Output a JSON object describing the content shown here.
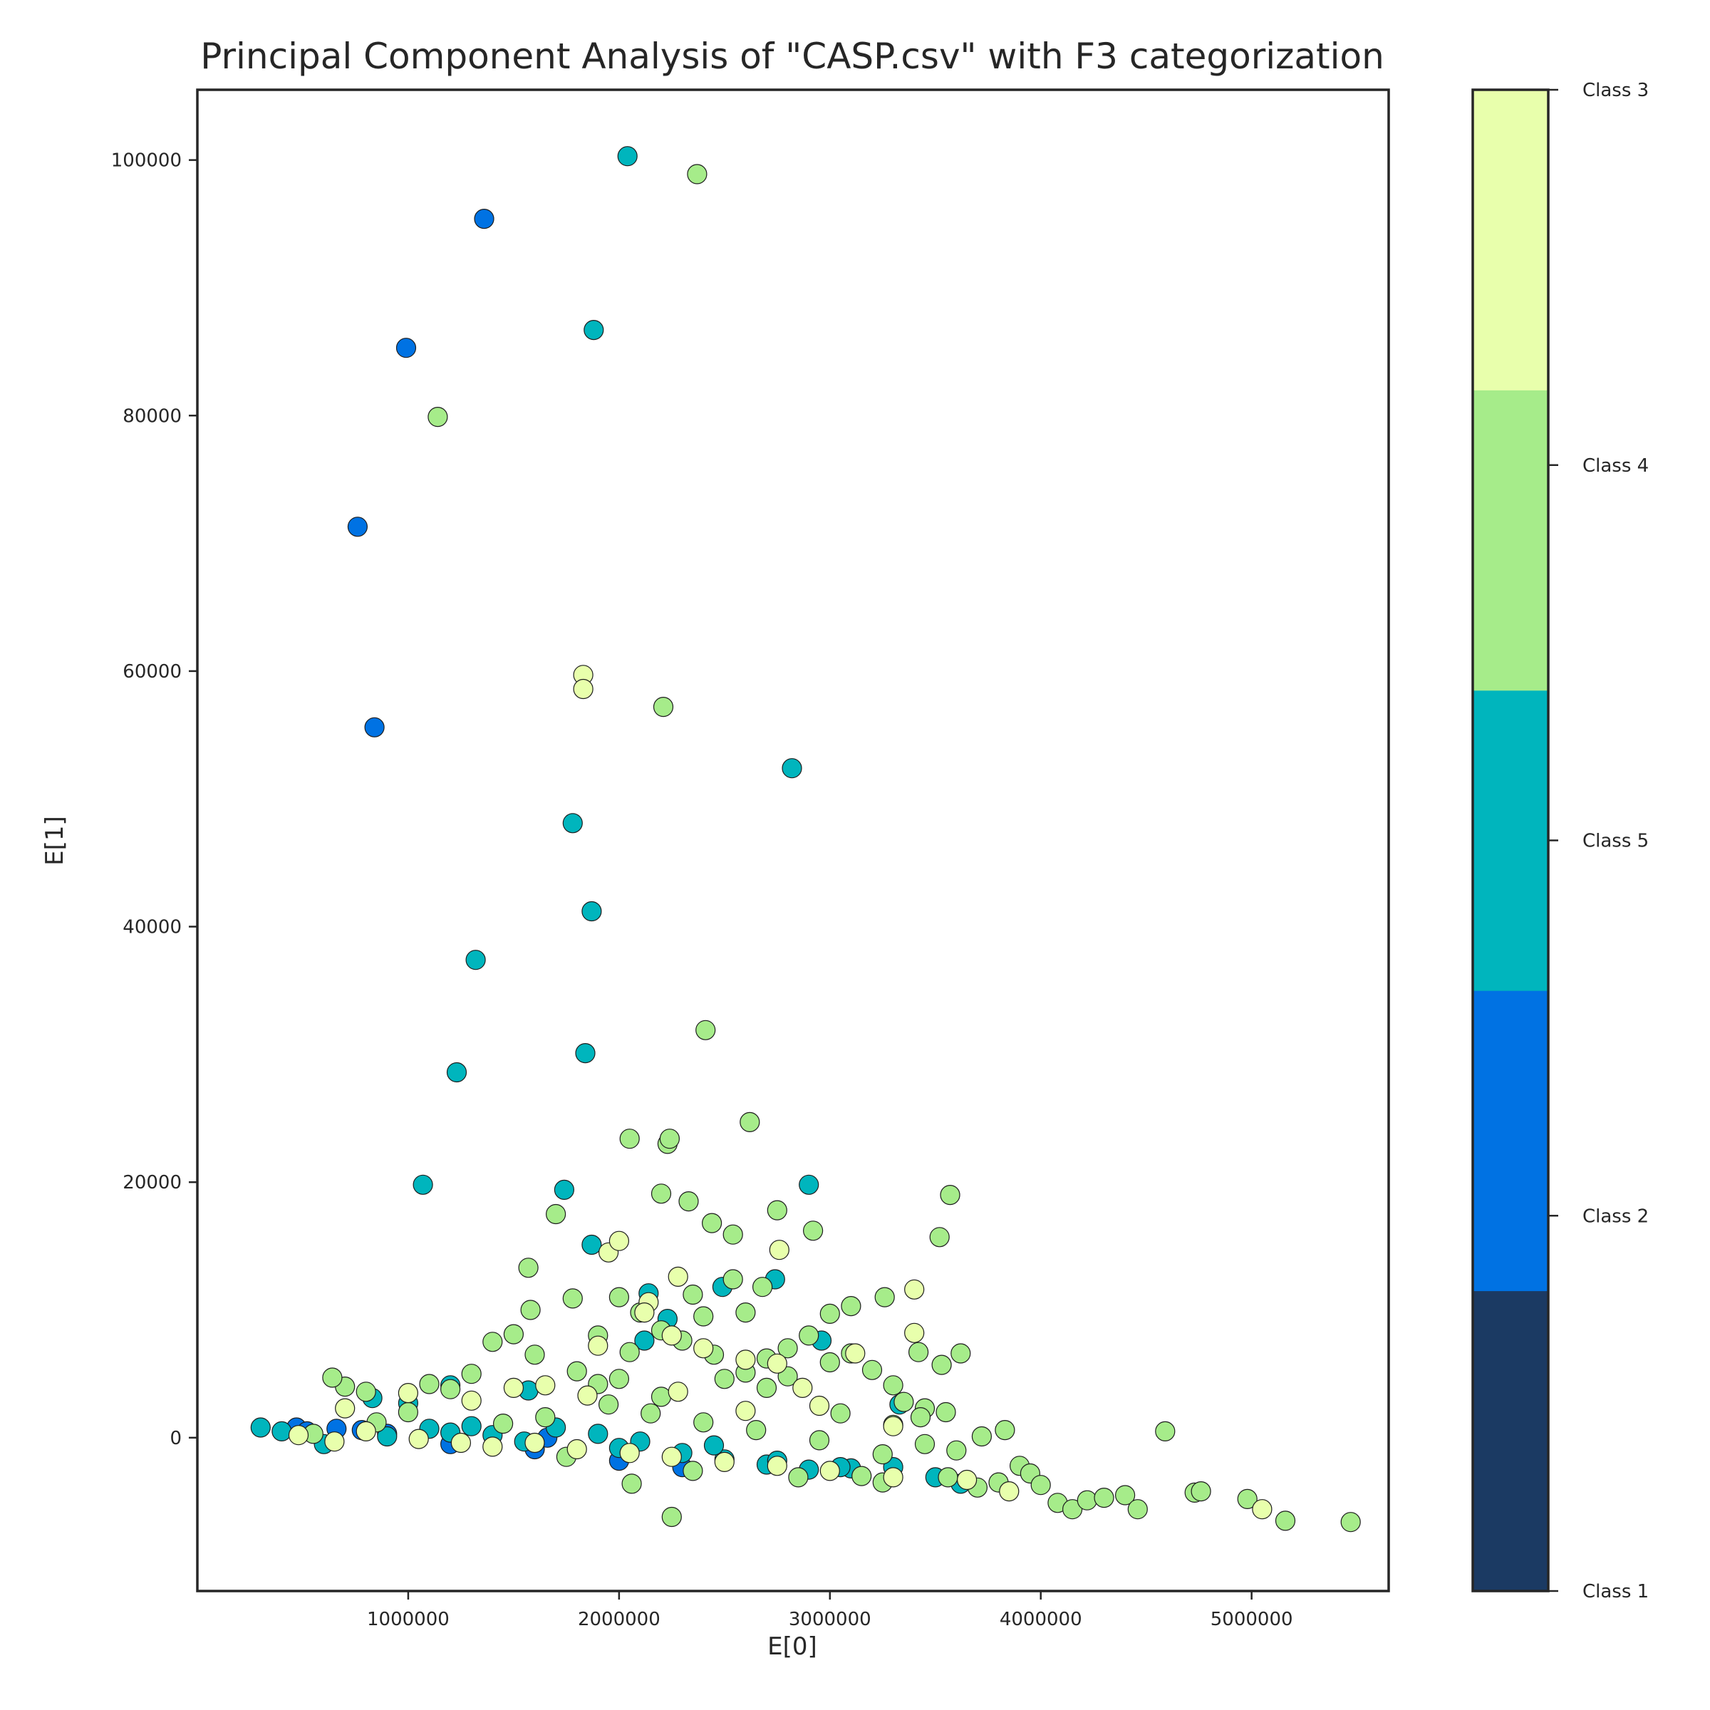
{
  "chart_data": {
    "type": "scatter",
    "title": "Principal Component Analysis of \"CASP.csv\" with F3 categorization",
    "xlabel": "E[0]",
    "ylabel": "E[1]",
    "xlim": [
      0,
      5650000
    ],
    "ylim": [
      -12000,
      105500
    ],
    "xticks": [
      1000000,
      2000000,
      3000000,
      4000000,
      5000000
    ],
    "yticks": [
      0,
      20000,
      40000,
      60000,
      80000,
      100000
    ],
    "grid": false,
    "colorbar": {
      "classes": [
        {
          "label": "Class 1",
          "color": "#1b3a63"
        },
        {
          "label": "Class 2",
          "color": "#0072e3"
        },
        {
          "label": "Class 5",
          "color": "#00b5bd"
        },
        {
          "label": "Class 4",
          "color": "#a6ec8a"
        },
        {
          "label": "Class 3",
          "color": "#e8ffac"
        }
      ]
    },
    "series": [
      {
        "name": "Class 2",
        "points": [
          [
            1360000,
            95400
          ],
          [
            990000,
            85300
          ],
          [
            760000,
            71300
          ],
          [
            840000,
            55600
          ],
          [
            1660000,
            0
          ],
          [
            470000,
            800
          ],
          [
            660000,
            700
          ],
          [
            520000,
            500
          ],
          [
            780000,
            600
          ],
          [
            900000,
            300
          ],
          [
            1200000,
            -500
          ],
          [
            1600000,
            -900
          ],
          [
            2000000,
            -1800
          ],
          [
            2300000,
            -2300
          ]
        ]
      },
      {
        "name": "Class 5",
        "points": [
          [
            2040000,
            100300
          ],
          [
            1880000,
            86700
          ],
          [
            2820000,
            52400
          ],
          [
            1780000,
            48100
          ],
          [
            1870000,
            41200
          ],
          [
            1320000,
            37400
          ],
          [
            1840000,
            30100
          ],
          [
            1230000,
            28600
          ],
          [
            1070000,
            19800
          ],
          [
            1740000,
            19400
          ],
          [
            2900000,
            19800
          ],
          [
            1870000,
            15100
          ],
          [
            2740000,
            12400
          ],
          [
            2490000,
            11800
          ],
          [
            2140000,
            11300
          ],
          [
            2230000,
            9300
          ],
          [
            2120000,
            7600
          ],
          [
            2960000,
            7600
          ],
          [
            3330000,
            2600
          ],
          [
            1570000,
            3700
          ],
          [
            1000000,
            2700
          ],
          [
            830000,
            3100
          ],
          [
            1200000,
            4100
          ],
          [
            300000,
            800
          ],
          [
            400000,
            500
          ],
          [
            600000,
            -500
          ],
          [
            900000,
            100
          ],
          [
            1100000,
            700
          ],
          [
            1300000,
            900
          ],
          [
            1400000,
            200
          ],
          [
            1700000,
            800
          ],
          [
            1900000,
            300
          ],
          [
            2100000,
            -300
          ],
          [
            2300000,
            -1200
          ],
          [
            2500000,
            -1700
          ],
          [
            2700000,
            -2100
          ],
          [
            2900000,
            -2500
          ],
          [
            3100000,
            -2400
          ],
          [
            3300000,
            -2300
          ],
          [
            3500000,
            -3100
          ],
          [
            3620000,
            -3600
          ],
          [
            2750000,
            -1800
          ],
          [
            3050000,
            -2300
          ],
          [
            2450000,
            -600
          ],
          [
            2000000,
            -800
          ],
          [
            1550000,
            -300
          ],
          [
            1200000,
            400
          ]
        ]
      },
      {
        "name": "Class 4",
        "points": [
          [
            2370000,
            98900
          ],
          [
            1140000,
            79900
          ],
          [
            2210000,
            57200
          ],
          [
            2410000,
            31900
          ],
          [
            2050000,
            23400
          ],
          [
            2230000,
            23000
          ],
          [
            2240000,
            23400
          ],
          [
            2620000,
            24700
          ],
          [
            2200000,
            19100
          ],
          [
            2330000,
            18500
          ],
          [
            3570000,
            19000
          ],
          [
            2750000,
            17800
          ],
          [
            1700000,
            17500
          ],
          [
            2920000,
            16200
          ],
          [
            2440000,
            16800
          ],
          [
            2540000,
            15900
          ],
          [
            3520000,
            15700
          ],
          [
            1570000,
            13300
          ],
          [
            2540000,
            12400
          ],
          [
            2680000,
            11800
          ],
          [
            3260000,
            11000
          ],
          [
            1780000,
            10900
          ],
          [
            1580000,
            10000
          ],
          [
            2400000,
            9500
          ],
          [
            2600000,
            9800
          ],
          [
            3000000,
            9700
          ],
          [
            3100000,
            10300
          ],
          [
            1400000,
            7500
          ],
          [
            1500000,
            8100
          ],
          [
            3620000,
            6600
          ],
          [
            3420000,
            6700
          ],
          [
            3530000,
            5700
          ],
          [
            2000000,
            11000
          ],
          [
            2100000,
            9800
          ],
          [
            2200000,
            8400
          ],
          [
            2300000,
            7600
          ],
          [
            2450000,
            6500
          ],
          [
            2700000,
            6200
          ],
          [
            2800000,
            7000
          ],
          [
            2900000,
            8000
          ],
          [
            3000000,
            5900
          ],
          [
            3100000,
            6600
          ],
          [
            3200000,
            5300
          ],
          [
            1300000,
            5000
          ],
          [
            1200000,
            3800
          ],
          [
            1100000,
            4200
          ],
          [
            800000,
            3600
          ],
          [
            700000,
            4000
          ],
          [
            640000,
            4700
          ],
          [
            1800000,
            5200
          ],
          [
            1900000,
            4200
          ],
          [
            2500000,
            4600
          ],
          [
            2600000,
            5100
          ],
          [
            2700000,
            3900
          ],
          [
            2800000,
            4800
          ],
          [
            3300000,
            4100
          ],
          [
            3350000,
            2800
          ],
          [
            3450000,
            2300
          ],
          [
            3550000,
            2000
          ],
          [
            3720000,
            100
          ],
          [
            3830000,
            600
          ],
          [
            3900000,
            -2200
          ],
          [
            3950000,
            -2800
          ],
          [
            4000000,
            -3700
          ],
          [
            4080000,
            -5100
          ],
          [
            4150000,
            -5600
          ],
          [
            4220000,
            -4900
          ],
          [
            4300000,
            -4700
          ],
          [
            4400000,
            -4500
          ],
          [
            4460000,
            -5600
          ],
          [
            4590000,
            500
          ],
          [
            4730000,
            -4300
          ],
          [
            4760000,
            -4200
          ],
          [
            4980000,
            -4800
          ],
          [
            5160000,
            -6500
          ],
          [
            5470000,
            -6600
          ],
          [
            2250000,
            -6200
          ],
          [
            2060000,
            -3600
          ],
          [
            3560000,
            -3100
          ],
          [
            3700000,
            -3900
          ],
          [
            3800000,
            -3500
          ],
          [
            3600000,
            -1000
          ],
          [
            3450000,
            -500
          ],
          [
            3250000,
            -1300
          ],
          [
            2950000,
            -200
          ],
          [
            2650000,
            600
          ],
          [
            2400000,
            1200
          ],
          [
            2150000,
            1900
          ],
          [
            1950000,
            2600
          ],
          [
            1650000,
            1600
          ],
          [
            1450000,
            1100
          ],
          [
            1000000,
            2000
          ],
          [
            850000,
            1200
          ],
          [
            550000,
            300
          ],
          [
            1750000,
            -1500
          ],
          [
            2350000,
            -2600
          ],
          [
            2850000,
            -3100
          ],
          [
            3150000,
            -3000
          ],
          [
            3250000,
            -3500
          ],
          [
            3050000,
            1900
          ],
          [
            3300000,
            1000
          ],
          [
            3430000,
            1600
          ],
          [
            2200000,
            3200
          ],
          [
            2050000,
            6700
          ],
          [
            1900000,
            8000
          ],
          [
            2350000,
            11200
          ],
          [
            2000000,
            4600
          ],
          [
            1600000,
            6500
          ]
        ]
      },
      {
        "name": "Class 3",
        "points": [
          [
            1830000,
            59700
          ],
          [
            1830000,
            58600
          ],
          [
            1950000,
            14500
          ],
          [
            2000000,
            15400
          ],
          [
            2280000,
            12600
          ],
          [
            2760000,
            14700
          ],
          [
            3400000,
            11600
          ],
          [
            3400000,
            8200
          ],
          [
            3120000,
            6600
          ],
          [
            2140000,
            10600
          ],
          [
            2120000,
            9800
          ],
          [
            2250000,
            8000
          ],
          [
            2400000,
            7000
          ],
          [
            2600000,
            6100
          ],
          [
            2750000,
            5800
          ],
          [
            2870000,
            3900
          ],
          [
            1900000,
            7200
          ],
          [
            1650000,
            4100
          ],
          [
            1500000,
            3900
          ],
          [
            1300000,
            2900
          ],
          [
            1000000,
            3500
          ],
          [
            700000,
            2300
          ],
          [
            480000,
            200
          ],
          [
            650000,
            -300
          ],
          [
            800000,
            500
          ],
          [
            1050000,
            -100
          ],
          [
            1250000,
            -400
          ],
          [
            1400000,
            -700
          ],
          [
            1600000,
            -400
          ],
          [
            1800000,
            -900
          ],
          [
            2050000,
            -1200
          ],
          [
            2250000,
            -1500
          ],
          [
            2500000,
            -1900
          ],
          [
            2750000,
            -2200
          ],
          [
            3000000,
            -2600
          ],
          [
            3300000,
            -3100
          ],
          [
            3650000,
            -3300
          ],
          [
            3850000,
            -4200
          ],
          [
            5050000,
            -5600
          ],
          [
            1850000,
            3300
          ],
          [
            2280000,
            3600
          ],
          [
            2600000,
            2100
          ],
          [
            2950000,
            2500
          ],
          [
            3300000,
            900
          ]
        ]
      }
    ]
  }
}
